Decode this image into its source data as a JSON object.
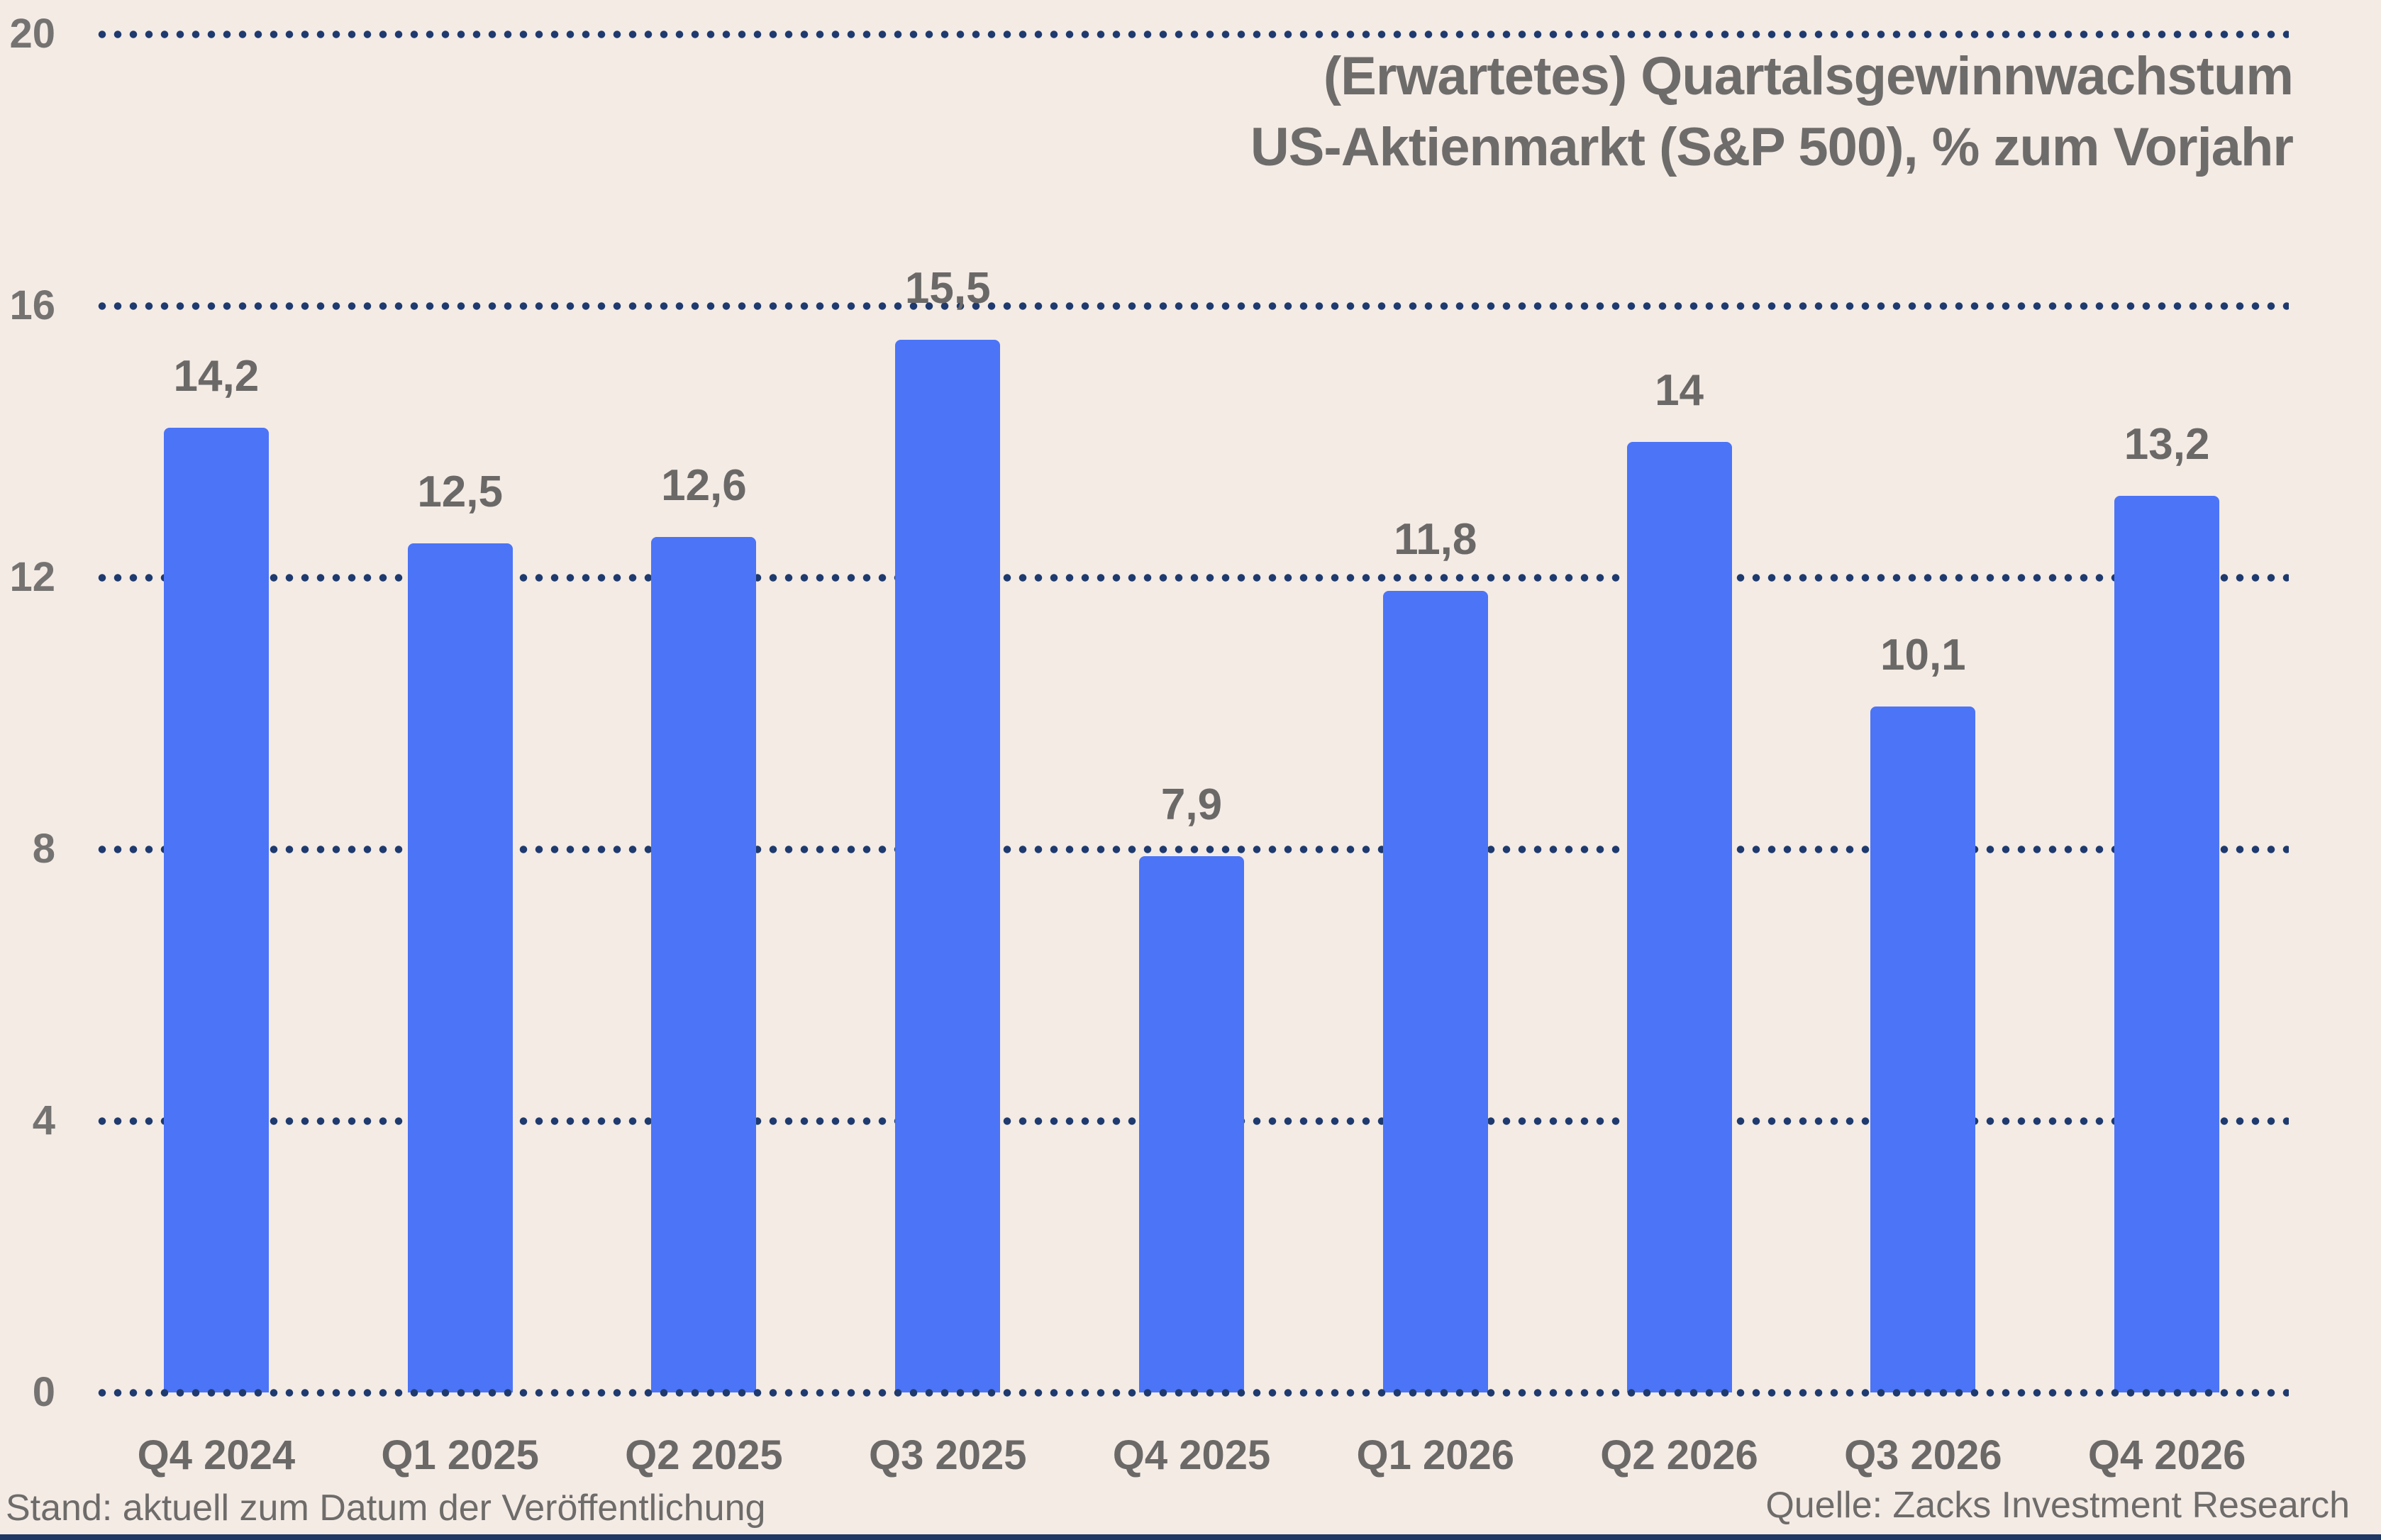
{
  "title": {
    "line1": "(Erwartetes) Quartalsgewinnwachstum",
    "line2": "US-Aktienmarkt (S&P 500), % zum Vorjahr"
  },
  "footer": {
    "left": "Stand: aktuell zum Datum der Veröffentlichung",
    "right": "Quelle: Zacks Investment Research"
  },
  "chart_data": {
    "type": "bar",
    "title": "(Erwartetes) Quartalsgewinnwachstum US-Aktienmarkt (S&P 500), % zum Vorjahr",
    "categories": [
      "Q4 2024",
      "Q1 2025",
      "Q2 2025",
      "Q3 2025",
      "Q4 2025",
      "Q1 2026",
      "Q2 2026",
      "Q3 2026",
      "Q4 2026"
    ],
    "values": [
      14.2,
      12.5,
      12.6,
      15.5,
      7.9,
      11.8,
      14,
      10.1,
      13.2
    ],
    "value_labels": [
      "14,2",
      "12,5",
      "12,6",
      "15,5",
      "7,9",
      "11,8",
      "14",
      "10,1",
      "13,2"
    ],
    "xlabel": "",
    "ylabel": "",
    "ylim": [
      0,
      20
    ],
    "yticks": [
      0,
      4,
      8,
      12,
      16,
      20
    ],
    "grid": "horizontal-dotted",
    "legend": "none",
    "colors": {
      "bar": "#4b74f7",
      "grid_dots": "#1e3a6e",
      "background": "#f4ebe5",
      "label_gray": "#6b6967",
      "tick_gray": "#757371",
      "bottom_line": "#1f3864"
    }
  }
}
